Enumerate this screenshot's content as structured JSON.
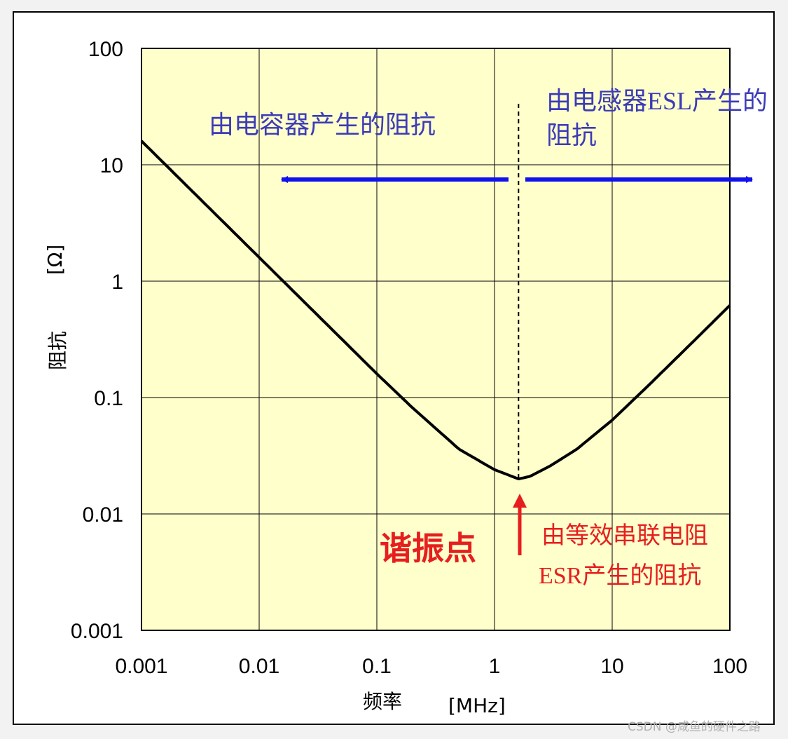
{
  "chart_data": {
    "type": "line",
    "x_scale": "log",
    "y_scale": "log",
    "xlim": [
      0.001,
      100
    ],
    "ylim": [
      0.001,
      100
    ],
    "x_ticks": [
      "0.001",
      "0.01",
      "0.1",
      "1",
      "10",
      "100"
    ],
    "y_ticks": [
      "100",
      "10",
      "1",
      "0.1",
      "0.01",
      "0.001"
    ],
    "xlabel": "频率",
    "xunit": "[MHz]",
    "ylabel": "阻抗",
    "yunit": "[Ω]",
    "grid": true,
    "plot_background": "#ffffcc",
    "line_color": "#000000",
    "series": [
      {
        "x": [
          0.001,
          0.002,
          0.005,
          0.01,
          0.02,
          0.05,
          0.1,
          0.2,
          0.5,
          1,
          1.6,
          2,
          3,
          5,
          10,
          20,
          50,
          100
        ],
        "values": [
          16,
          8,
          3.2,
          1.6,
          0.8,
          0.32,
          0.16,
          0.082,
          0.036,
          0.024,
          0.02,
          0.021,
          0.026,
          0.036,
          0.064,
          0.125,
          0.31,
          0.62
        ]
      }
    ],
    "resonance_x": 1.6,
    "annotations": {
      "capacitor": "由电容器产生的阻抗",
      "inductor_line1": "由电感器ESL产生的",
      "inductor_line2": "阻抗",
      "resonance": "谐振点",
      "esr_line1": "由等效串联电阻",
      "esr_line2": "ESR产生的阻抗"
    },
    "colors": {
      "blue_arrow": "#1111ee",
      "blue_text": "#3b3bb8",
      "red": "#e61e1e"
    }
  },
  "watermark": "CSDN @咸鱼的硬件之路"
}
